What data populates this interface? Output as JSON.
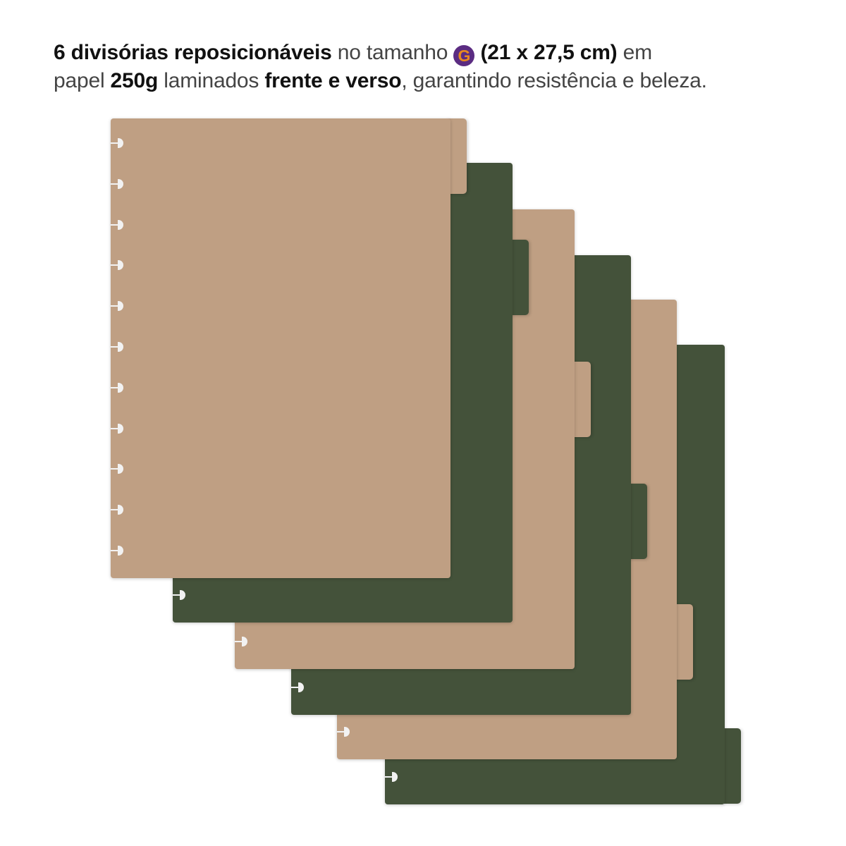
{
  "caption": {
    "line1_bold": "6 divisórias reposicionáveis",
    "line1_light": " no tamanho ",
    "size_badge": "G",
    "line1_bold2": " (21 x 27,5 cm)",
    "line1_light2": " em",
    "line2_light": "papel ",
    "line2_bold": "250g",
    "line2_light2": " laminados ",
    "line2_bold2": "frente e verso",
    "line2_light3": ", garantindo resistência e beleza."
  },
  "colors": {
    "tan": "#bf9f83",
    "green": "#44523a",
    "badge_bg": "#5b2c82",
    "badge_fg": "#e8891f"
  },
  "dividers": [
    "tan",
    "green",
    "tan",
    "green",
    "tan",
    "green"
  ]
}
